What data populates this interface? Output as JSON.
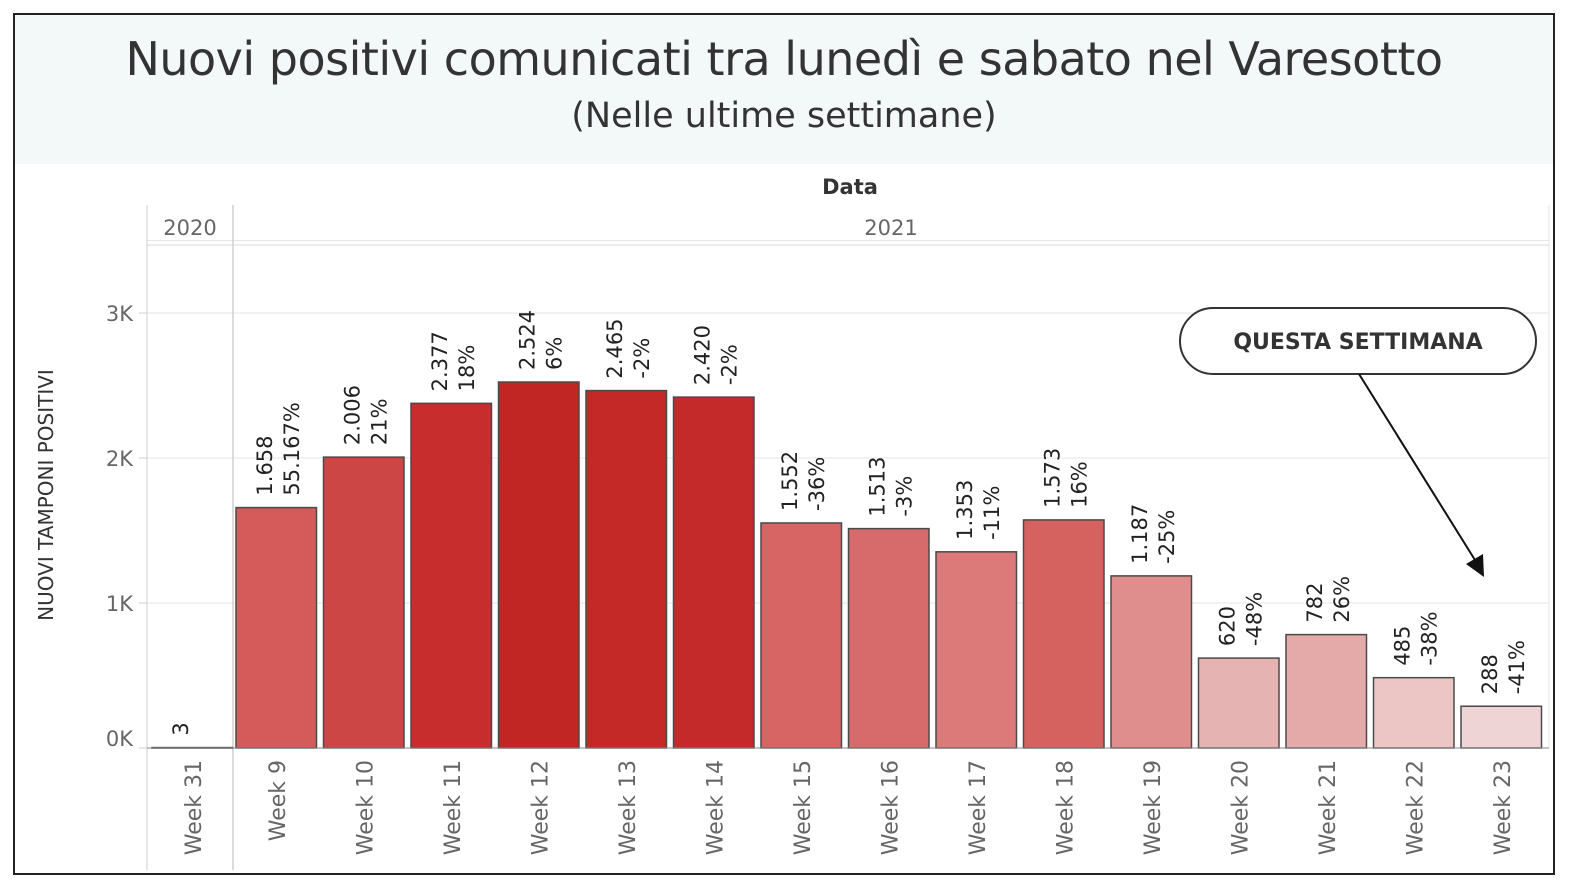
{
  "title": "Nuovi positivi comunicati tra lunedì e sabato nel Varesotto",
  "subtitle": "(Nelle ultime settimane)",
  "annotation": "QUESTA SETTIMANA",
  "chart_data": {
    "type": "bar",
    "column_header": "Data",
    "ylabel": "NUOVI TAMPONI POSITIVI",
    "ylim": [
      0,
      3500
    ],
    "yticks": [
      0,
      1000,
      2000,
      3000
    ],
    "ytick_labels": [
      "0K",
      "1K",
      "2K",
      "3K"
    ],
    "grid": true,
    "year_groups": [
      {
        "label": "2020",
        "count": 1
      },
      {
        "label": "2021",
        "count": 15
      }
    ],
    "categories": [
      "Week 31",
      "Week 9",
      "Week 10",
      "Week 11",
      "Week 12",
      "Week 13",
      "Week 14",
      "Week 15",
      "Week 16",
      "Week 17",
      "Week 18",
      "Week 19",
      "Week 20",
      "Week 21",
      "Week 22",
      "Week 23"
    ],
    "values": [
      3,
      1658,
      2006,
      2377,
      2524,
      2465,
      2420,
      1552,
      1513,
      1353,
      1573,
      1187,
      620,
      782,
      485,
      288
    ],
    "value_labels": [
      "3",
      "1.658",
      "2.006",
      "2.377",
      "2.524",
      "2.465",
      "2.420",
      "1.552",
      "1.513",
      "1.353",
      "1.573",
      "1.187",
      "620",
      "782",
      "485",
      "288"
    ],
    "change_labels": [
      "",
      "55.167%",
      "21%",
      "18%",
      "6%",
      "-2%",
      "-2%",
      "-36%",
      "-3%",
      "-11%",
      "16%",
      "-25%",
      "-48%",
      "26%",
      "-38%",
      "-41%"
    ],
    "bar_colors": [
      "#f2dede",
      "#d45b5a",
      "#cd4646",
      "#c62d2c",
      "#c22624",
      "#c42928",
      "#c42a29",
      "#d66564",
      "#d76a6a",
      "#db7a79",
      "#d6625f",
      "#e08e8d",
      "#e6b3b3",
      "#e4aaaa",
      "#ebc6c5",
      "#efd4d5"
    ]
  }
}
